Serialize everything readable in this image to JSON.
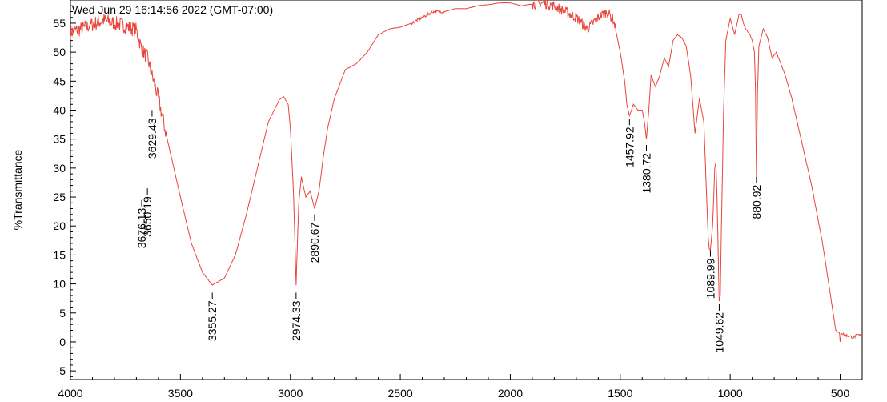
{
  "chart_data": {
    "type": "line",
    "title": "Wed Jun 29 16:14:56 2022 (GMT-07:00)",
    "xlabel": "",
    "ylabel": "%Transmittance",
    "xlim": [
      4000,
      400
    ],
    "ylim": [
      -6.5,
      59
    ],
    "x_reversed": true,
    "grid": false,
    "x_ticks": [
      4000,
      3500,
      3000,
      2500,
      2000,
      1500,
      1000,
      500
    ],
    "x_tick_labels": [
      "4000",
      "3500",
      "3000",
      "2500",
      "2000",
      "1500",
      "1000",
      "500"
    ],
    "y_ticks": [
      -5,
      0,
      5,
      10,
      15,
      20,
      25,
      30,
      35,
      40,
      45,
      50,
      55
    ],
    "y_tick_labels": [
      "-5",
      "0",
      "5",
      "10",
      "15",
      "20",
      "25",
      "30",
      "35",
      "40",
      "45",
      "50",
      "55"
    ],
    "line_color": "#e8453c",
    "series": [
      {
        "x": [
          4000,
          3950,
          3900,
          3850,
          3800,
          3750,
          3700,
          3676,
          3650,
          3629,
          3600,
          3560,
          3500,
          3450,
          3400,
          3355,
          3300,
          3250,
          3200,
          3150,
          3100,
          3050,
          3030,
          3010,
          3000,
          2985,
          2974,
          2962,
          2950,
          2930,
          2910,
          2890,
          2870,
          2850,
          2830,
          2800,
          2750,
          2700,
          2650,
          2600,
          2550,
          2500,
          2450,
          2400,
          2350,
          2300,
          2250,
          2200,
          2150,
          2100,
          2050,
          2000,
          1950,
          1900,
          1850,
          1800,
          1750,
          1700,
          1650,
          1600,
          1560,
          1530,
          1500,
          1480,
          1470,
          1458,
          1440,
          1420,
          1400,
          1390,
          1381,
          1370,
          1360,
          1340,
          1320,
          1300,
          1280,
          1260,
          1240,
          1220,
          1200,
          1180,
          1160,
          1140,
          1120,
          1100,
          1095,
          1090,
          1080,
          1070,
          1065,
          1060,
          1050,
          1045,
          1040,
          1030,
          1020,
          1000,
          980,
          960,
          950,
          940,
          930,
          910,
          900,
          890,
          885,
          881,
          876,
          870,
          850,
          830,
          810,
          790,
          770,
          750,
          720,
          690,
          660,
          630,
          600,
          580,
          560,
          540,
          520,
          510,
          503,
          500,
          495,
          480,
          460,
          440,
          420,
          400
        ],
        "y": [
          53.5,
          54.0,
          54.8,
          55.5,
          55.0,
          54.5,
          53.8,
          50.5,
          49.0,
          46.0,
          42.0,
          35.0,
          25.0,
          17.0,
          12.0,
          9.8,
          11.0,
          15.0,
          22.0,
          30.0,
          38.0,
          41.8,
          42.3,
          41.0,
          37.0,
          25.0,
          9.8,
          24.0,
          28.5,
          25.0,
          26.0,
          23.0,
          26.0,
          32.0,
          37.0,
          42.0,
          47.0,
          48.0,
          50.0,
          53.0,
          54.0,
          54.3,
          55.0,
          56.0,
          57.0,
          57.0,
          57.5,
          57.5,
          58.0,
          58.2,
          58.5,
          58.5,
          58.0,
          58.3,
          58.5,
          58.0,
          57.0,
          56.0,
          54.0,
          56.0,
          57.0,
          55.5,
          50.0,
          45.0,
          41.0,
          39.0,
          41.0,
          40.0,
          40.0,
          38.0,
          35.0,
          40.0,
          46.0,
          44.0,
          46.0,
          49.0,
          47.5,
          52.0,
          53.0,
          52.5,
          51.0,
          46.0,
          36.0,
          42.0,
          38.0,
          18.0,
          16.0,
          15.8,
          20.0,
          30.0,
          31.0,
          25.0,
          7.0,
          8.0,
          20.0,
          40.0,
          52.0,
          55.8,
          53.0,
          56.5,
          56.5,
          55.0,
          54.0,
          53.0,
          52.0,
          50.0,
          43.0,
          28.5,
          43.0,
          51.0,
          54.0,
          52.5,
          49.0,
          50.0,
          48.0,
          46.0,
          42.0,
          37.0,
          32.0,
          27.0,
          21.0,
          17.0,
          12.0,
          7.0,
          2.0,
          1.7,
          1.5,
          0.0,
          1.6,
          1.2,
          1.0,
          0.8,
          1.2,
          1.0
        ]
      }
    ],
    "annotations": [
      {
        "x": 3676,
        "y": 24.5,
        "label": "3676.13"
      },
      {
        "x": 3650,
        "y": 26.5,
        "label": "3650.19"
      },
      {
        "x": 3629,
        "y": 40.0,
        "label": "3629.43"
      },
      {
        "x": 3355,
        "y": 8.5,
        "label": "3355.27"
      },
      {
        "x": 2974,
        "y": 8.5,
        "label": "2974.33"
      },
      {
        "x": 2890,
        "y": 22.0,
        "label": "2890.67"
      },
      {
        "x": 1458,
        "y": 38.5,
        "label": "1457.92"
      },
      {
        "x": 1381,
        "y": 34.0,
        "label": "1380.72"
      },
      {
        "x": 1090,
        "y": 15.8,
        "label": "1089.99"
      },
      {
        "x": 1050,
        "y": 6.5,
        "label": "1049.62"
      },
      {
        "x": 881,
        "y": 28.5,
        "label": "880.92"
      }
    ]
  }
}
